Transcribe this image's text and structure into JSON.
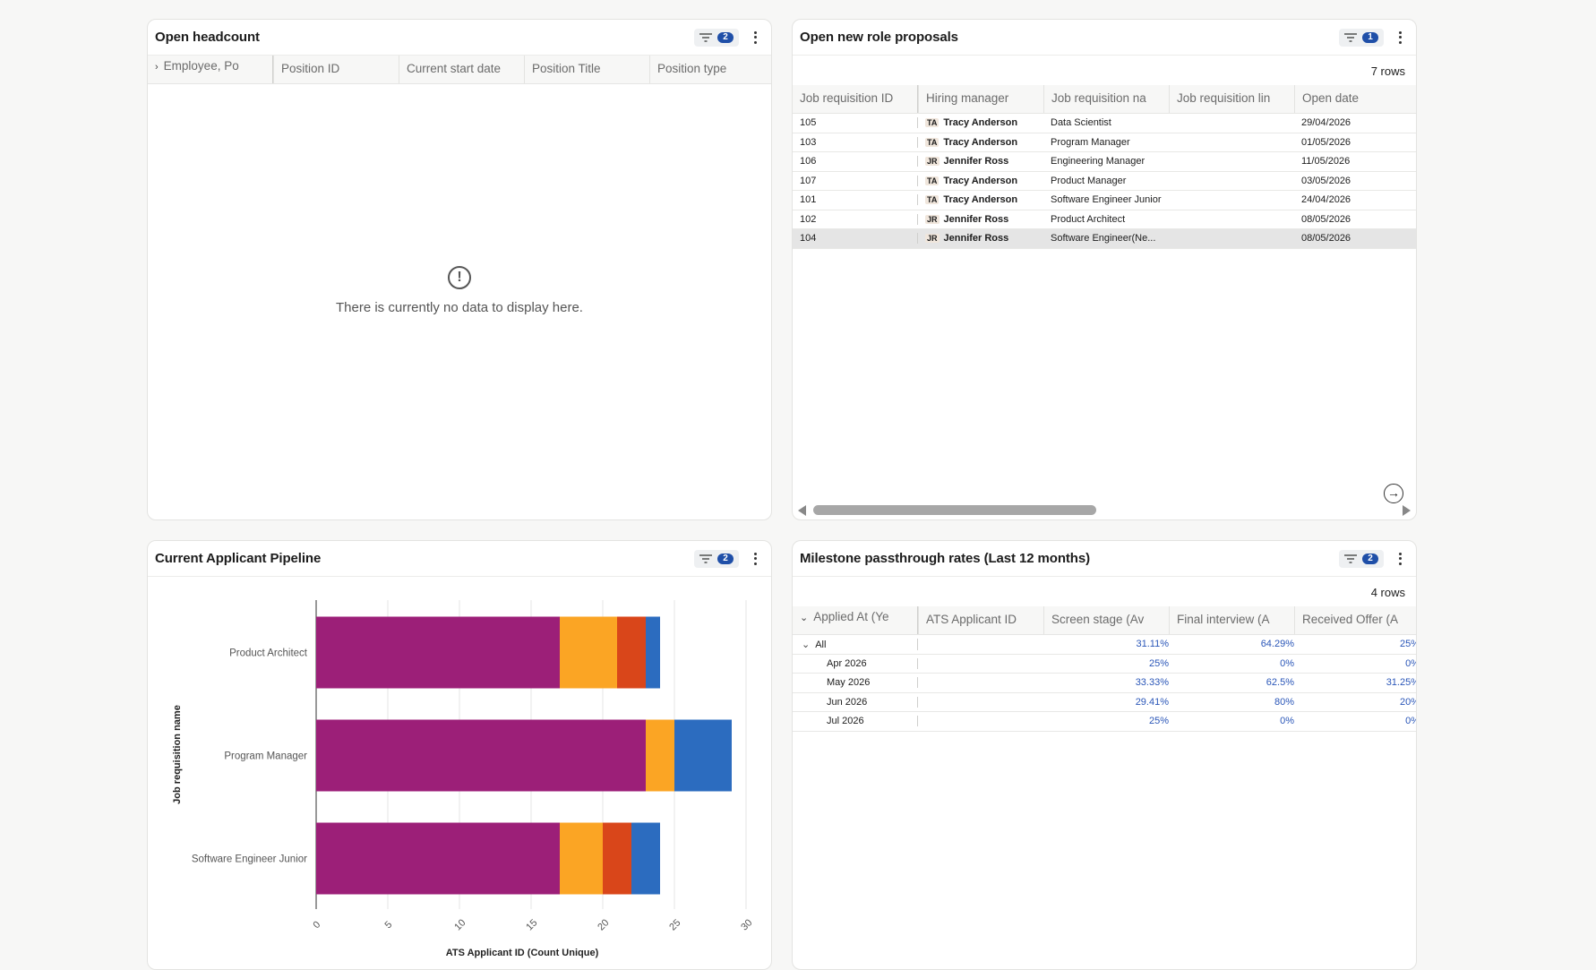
{
  "headcount": {
    "title": "Open headcount",
    "filter_count": "2",
    "columns": [
      "Employee, Po",
      "Position ID",
      "Current start date",
      "Position Title",
      "Position type"
    ],
    "empty_message": "There is currently no data to display here.",
    "empty_icon": "exclamation-circle-icon"
  },
  "proposals": {
    "title": "Open new role proposals",
    "filter_count": "1",
    "rows_label": "7 rows",
    "columns": [
      "Job requisition ID",
      "Hiring manager",
      "Job requisition na",
      "Job requisition lin",
      "Open date"
    ],
    "rows": [
      {
        "id": "105",
        "initials": "TA",
        "manager": "Tracy Anderson",
        "name": "Data Scientist",
        "link": "",
        "date": "29/04/2026"
      },
      {
        "id": "103",
        "initials": "TA",
        "manager": "Tracy Anderson",
        "name": "Program Manager",
        "link": "",
        "date": "01/05/2026"
      },
      {
        "id": "106",
        "initials": "JR",
        "manager": "Jennifer Ross",
        "name": "Engineering Manager",
        "link": "",
        "date": "11/05/2026"
      },
      {
        "id": "107",
        "initials": "TA",
        "manager": "Tracy Anderson",
        "name": "Product Manager",
        "link": "",
        "date": "03/05/2026"
      },
      {
        "id": "101",
        "initials": "TA",
        "manager": "Tracy Anderson",
        "name": "Software Engineer Junior",
        "link": "",
        "date": "24/04/2026"
      },
      {
        "id": "102",
        "initials": "JR",
        "manager": "Jennifer Ross",
        "name": "Product Architect",
        "link": "",
        "date": "08/05/2026"
      },
      {
        "id": "104",
        "initials": "JR",
        "manager": "Jennifer Ross",
        "name": "Software Engineer(Ne...",
        "link": "",
        "date": "08/05/2026"
      }
    ]
  },
  "pipeline": {
    "title": "Current Applicant Pipeline",
    "filter_count": "2"
  },
  "milestone": {
    "title": "Milestone passthrough rates (Last 12 months)",
    "filter_count": "2",
    "rows_label": "4 rows",
    "columns": [
      "Applied At (Ye",
      "ATS Applicant ID",
      "Screen stage (Av",
      "Final interview (A",
      "Received Offer (A"
    ],
    "rows": [
      {
        "label": "All",
        "applicant": "",
        "screen": "31.11%",
        "final": "64.29%",
        "offer": "25%"
      },
      {
        "label": "Apr 2026",
        "applicant": "",
        "screen": "25%",
        "final": "0%",
        "offer": "0%"
      },
      {
        "label": "May 2026",
        "applicant": "",
        "screen": "33.33%",
        "final": "62.5%",
        "offer": "31.25%"
      },
      {
        "label": "Jun 2026",
        "applicant": "",
        "screen": "29.41%",
        "final": "80%",
        "offer": "20%"
      },
      {
        "label": "Jul 2026",
        "applicant": "",
        "screen": "25%",
        "final": "0%",
        "offer": "0%"
      }
    ]
  },
  "chart_data": {
    "type": "bar",
    "orientation": "horizontal",
    "stacked": true,
    "title": "",
    "xlabel": "ATS Applicant ID (Count Unique)",
    "ylabel": "Job requisition name",
    "xlim": [
      0,
      30
    ],
    "xticks": [
      "0",
      "5",
      "10",
      "15",
      "20",
      "25",
      "30"
    ],
    "categories": [
      "Product Architect",
      "Program Manager",
      "Software Engineer Junior"
    ],
    "series": [
      {
        "color": "#9c1f78",
        "values": [
          17,
          23,
          17
        ]
      },
      {
        "color": "#fba524",
        "values": [
          4,
          2,
          3
        ]
      },
      {
        "color": "#d9461a",
        "values": [
          2,
          0,
          2
        ]
      },
      {
        "color": "#2c6cbf",
        "values": [
          1,
          4,
          2
        ]
      }
    ],
    "grid": true
  }
}
